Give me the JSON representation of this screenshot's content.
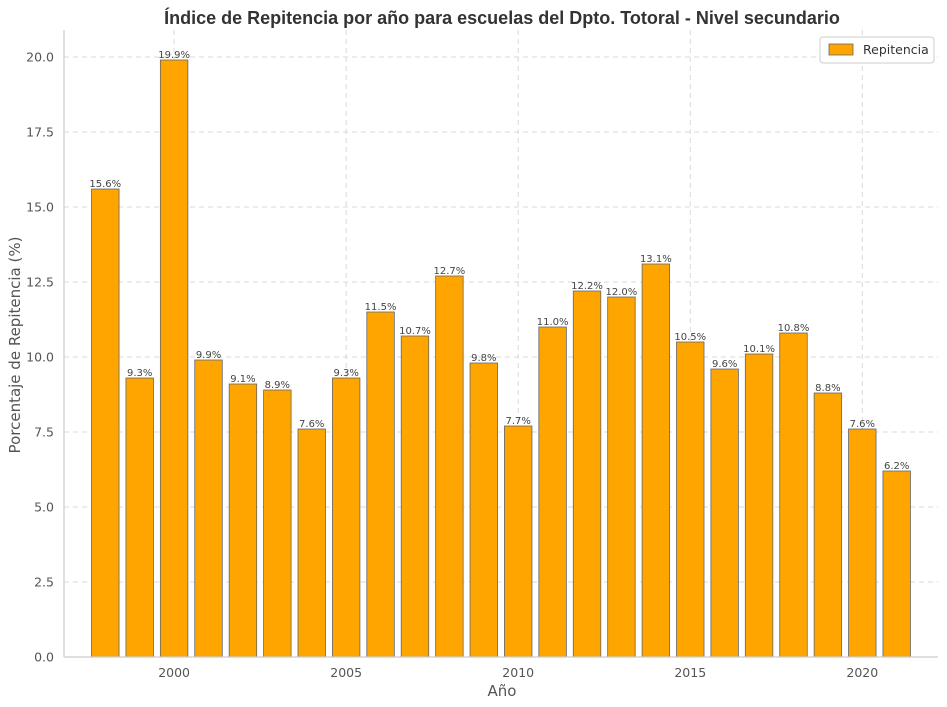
{
  "chart_data": {
    "type": "bar",
    "title": "Índice de Repitencia por año para escuelas del Dpto. Totoral - Nivel secundario",
    "xlabel": "Año",
    "ylabel": "Porcentaje de Repitencia (%)",
    "x": [
      1998,
      1999,
      2000,
      2001,
      2002,
      2003,
      2004,
      2005,
      2006,
      2007,
      2008,
      2009,
      2010,
      2011,
      2012,
      2013,
      2014,
      2015,
      2016,
      2017,
      2018,
      2019,
      2020,
      2021
    ],
    "series": [
      {
        "name": "Repitencia",
        "values": [
          15.6,
          9.3,
          19.9,
          9.9,
          9.1,
          8.9,
          7.6,
          9.3,
          11.5,
          10.7,
          12.7,
          9.8,
          7.7,
          11.0,
          12.2,
          12.0,
          13.1,
          10.5,
          9.6,
          10.1,
          10.8,
          8.8,
          7.6,
          6.2
        ],
        "color": "#FFA500"
      }
    ],
    "value_labels": [
      "15.6%",
      "9.3%",
      "19.9%",
      "9.9%",
      "9.1%",
      "8.9%",
      "7.6%",
      "9.3%",
      "11.5%",
      "10.7%",
      "12.7%",
      "9.8%",
      "7.7%",
      "11.0%",
      "12.2%",
      "12.0%",
      "13.1%",
      "10.5%",
      "9.6%",
      "10.1%",
      "10.8%",
      "8.8%",
      "7.6%",
      "6.2%"
    ],
    "xticks": [
      "2000",
      "2005",
      "2010",
      "2015",
      "2020"
    ],
    "yticks": [
      "0.0",
      "2.5",
      "5.0",
      "7.5",
      "10.0",
      "12.5",
      "15.0",
      "17.5",
      "20.0"
    ],
    "xlim": [
      1996.8,
      2022.2
    ],
    "ylim": [
      0,
      20.9
    ],
    "grid": true,
    "legend_position": "top-right",
    "bar_edge_color": "#666666",
    "grid_color": "#d9d9d9",
    "axis_color": "#cccccc"
  }
}
